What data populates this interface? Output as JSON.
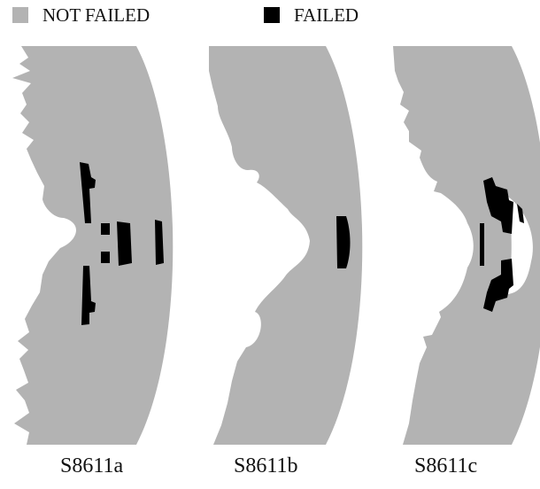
{
  "colors": {
    "not_failed": "#b3b3b3",
    "failed": "#000000",
    "background": "#ffffff"
  },
  "legend": {
    "not_failed_label": "NOT FAILED",
    "failed_label": "FAILED"
  },
  "specimens": [
    {
      "label": "S8611a"
    },
    {
      "label": "S8611b"
    },
    {
      "label": "S8611c"
    }
  ]
}
